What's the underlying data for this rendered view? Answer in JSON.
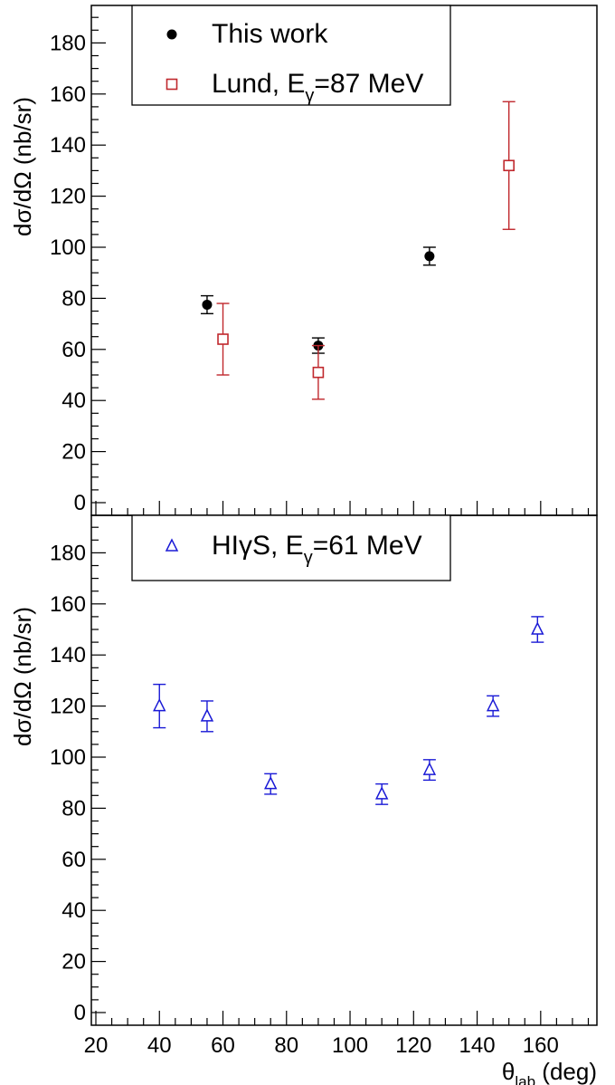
{
  "chart_data": [
    {
      "type": "scatter",
      "ylabel": "dσ/dΩ (nb/sr)",
      "ylim": [
        -2,
        195
      ],
      "yticks": [
        0,
        20,
        40,
        60,
        80,
        100,
        120,
        140,
        160,
        180
      ],
      "xlim": [
        18,
        176
      ],
      "legend_position": "top-left",
      "series": [
        {
          "name": "This work",
          "marker": "filled-circle",
          "color": "#000000",
          "points": [
            {
              "x": 55,
              "y": 77.5,
              "err": 3.5
            },
            {
              "x": 90,
              "y": 61.5,
              "err": 3
            },
            {
              "x": 125,
              "y": 96.5,
              "err": 3.5
            }
          ]
        },
        {
          "name": "Lund, E",
          "name_subscript": "γ",
          "name_suffix": "=87 MeV",
          "marker": "open-square",
          "color": "#c0282d",
          "points": [
            {
              "x": 60,
              "y": 64,
              "err": 14
            },
            {
              "x": 90,
              "y": 51,
              "err": 10.5
            },
            {
              "x": 150,
              "y": 132,
              "err": 25
            }
          ]
        }
      ]
    },
    {
      "type": "scatter",
      "ylabel": "dσ/dΩ (nb/sr)",
      "xlabel": "θ",
      "xlabel_subscript": "lab",
      "xlabel_suffix": " (deg)",
      "ylim": [
        -2,
        195
      ],
      "yticks": [
        0,
        20,
        40,
        60,
        80,
        100,
        120,
        140,
        160,
        180
      ],
      "xlim": [
        18,
        176
      ],
      "xticks": [
        20,
        40,
        60,
        80,
        100,
        120,
        140,
        160
      ],
      "legend_position": "top-left",
      "series": [
        {
          "name": "HIγS, E",
          "name_subscript": "γ",
          "name_suffix": "=61 MeV",
          "marker": "open-triangle",
          "color": "#1a1ad6",
          "points": [
            {
              "x": 40,
              "y": 120,
              "err": 8.5
            },
            {
              "x": 55,
              "y": 116,
              "err": 6
            },
            {
              "x": 75,
              "y": 89.5,
              "err": 4
            },
            {
              "x": 110,
              "y": 85.5,
              "err": 4
            },
            {
              "x": 125,
              "y": 95,
              "err": 4
            },
            {
              "x": 145,
              "y": 120,
              "err": 4
            },
            {
              "x": 159,
              "y": 150,
              "err": 5
            }
          ]
        }
      ]
    }
  ]
}
